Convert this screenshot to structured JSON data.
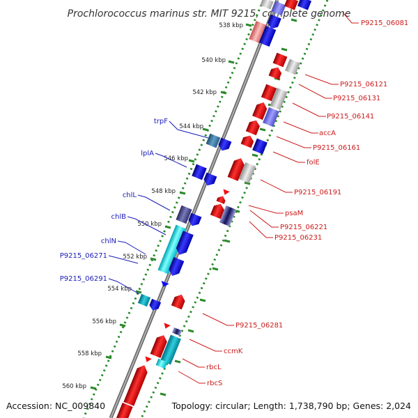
{
  "title": "Prochlorococcus marinus str. MIT 9215, complete genome",
  "footer": {
    "accession": "Accession: NC_009840",
    "summary": "Topology: circular; Length: 1,738,790 bp; Genes: 2,024"
  },
  "colors": {
    "forward_gene": "#0000ee",
    "reverse_gene": "#ee0000",
    "scale_ticks": "#2a8a2a",
    "backbone": "#888888",
    "left_label": "#1a1ab8",
    "right_label": "#cc1a1a"
  },
  "scale_labels": [
    "538 kbp",
    "540 kbp",
    "542 kbp",
    "544 kbp",
    "546 kbp",
    "548 kbp",
    "550 kbp",
    "552 kbp",
    "554 kbp",
    "556 kbp",
    "558 kbp",
    "560 kbp"
  ],
  "left_labels": [
    "trpF",
    "lplA",
    "chlL",
    "chlB",
    "chlN",
    "P9215_06271",
    "P9215_06291"
  ],
  "right_labels": [
    "P9215_06081",
    "P9215_06121",
    "P9215_06131",
    "P9215_06141",
    "accA",
    "P9215_06161",
    "folE",
    "P9215_06191",
    "psaM",
    "P9215_06221",
    "P9215_06231",
    "P9215_06281",
    "ccmK",
    "rbcL",
    "rbcS"
  ]
}
